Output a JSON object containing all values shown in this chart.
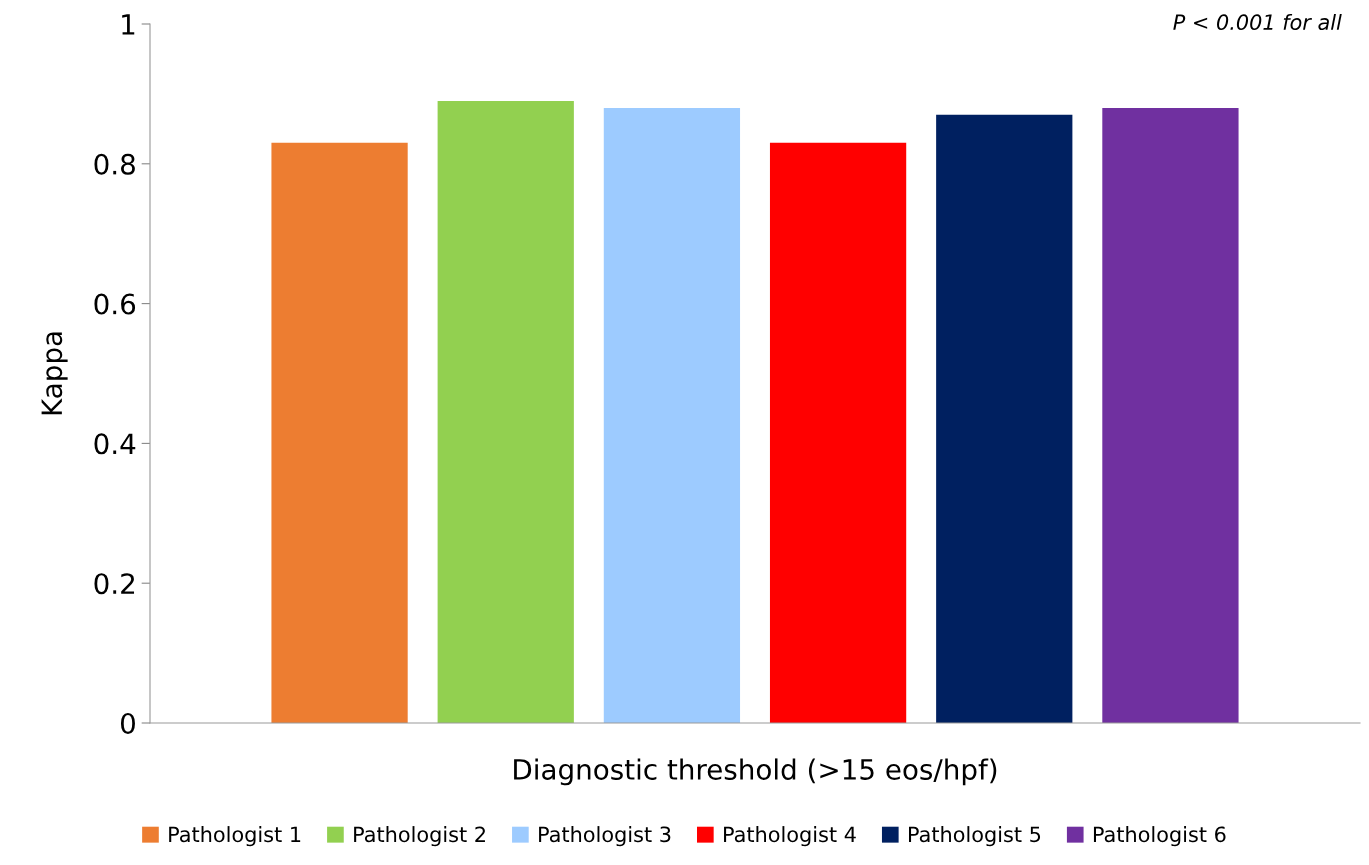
{
  "chart_data": {
    "type": "bar",
    "ylabel": "Kappa",
    "xlabel": "Diagnostic threshold (>15 eos/hpf)",
    "categories": [
      null
    ],
    "series": [
      {
        "name": "Pathologist 1",
        "color": "#ed7d31",
        "values": [
          0.83
        ]
      },
      {
        "name": "Pathologist 2",
        "color": "#92d050",
        "values": [
          0.89
        ]
      },
      {
        "name": "Pathologist 3",
        "color": "#9dcbff",
        "values": [
          0.88
        ]
      },
      {
        "name": "Pathologist 4",
        "color": "#ff0000",
        "values": [
          0.83
        ]
      },
      {
        "name": "Pathologist 5",
        "color": "#002060",
        "values": [
          0.87
        ]
      },
      {
        "name": "Pathologist 6",
        "color": "#7030a0",
        "values": [
          0.88
        ]
      }
    ],
    "ylim": [
      0,
      1
    ],
    "yticks": [
      0,
      0.2,
      0.4,
      0.6,
      0.8,
      1
    ],
    "annotations": [
      "P < 0.001 for all"
    ],
    "legend": "bottom",
    "grid": false
  }
}
